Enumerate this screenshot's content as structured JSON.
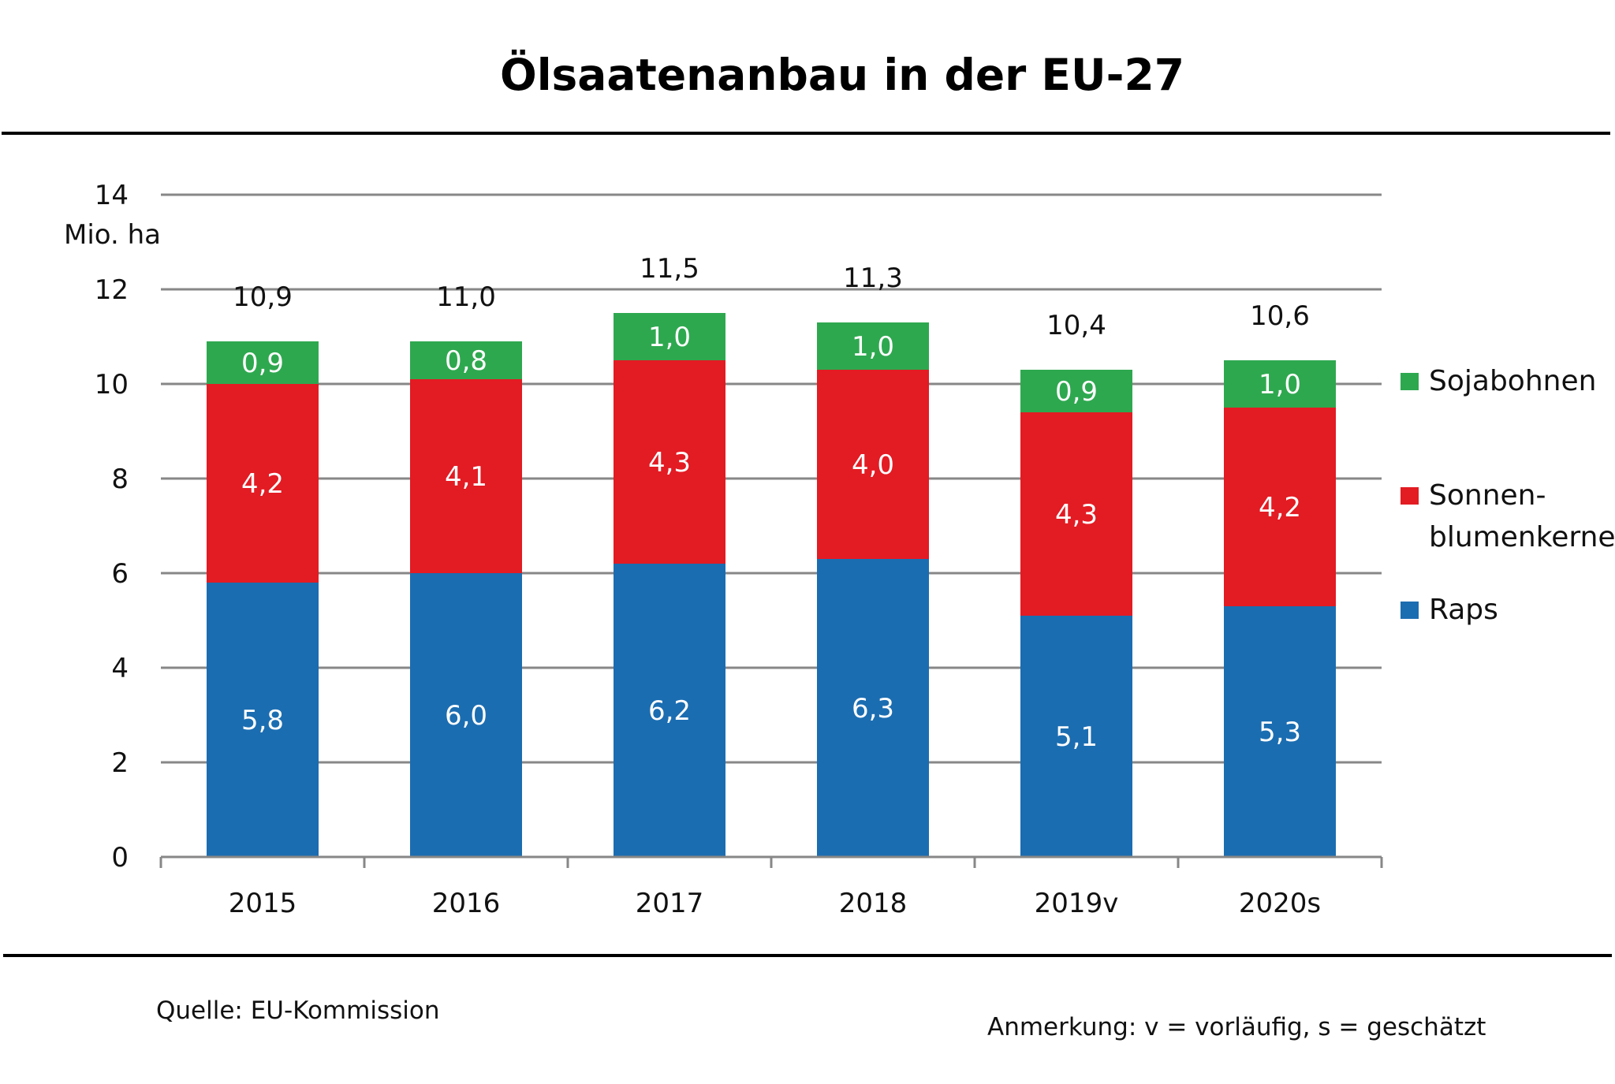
{
  "chart_data": {
    "type": "bar",
    "stacked": true,
    "title": "Ölsaatenanbau in der EU-27",
    "ylabel": "Mio. ha",
    "xlabel": "",
    "ylim": [
      0,
      14
    ],
    "yticks": [
      0,
      2,
      4,
      6,
      8,
      10,
      12,
      14
    ],
    "ytick_labels": [
      "0",
      "2",
      "4",
      "6",
      "8",
      "10",
      "12",
      "14"
    ],
    "grid": true,
    "legend_position": "right",
    "categories": [
      "2015",
      "2016",
      "2017",
      "2018",
      "2019v",
      "2020s"
    ],
    "series": [
      {
        "name": "Raps",
        "color": "#1b6db1",
        "values": [
          5.8,
          6.0,
          6.2,
          6.3,
          5.1,
          5.3
        ],
        "labels": [
          "5,8",
          "6,0",
          "6,2",
          "6,3",
          "5,1",
          "5,3"
        ]
      },
      {
        "name": "Sonnen-blumenkerne",
        "color": "#e31b23",
        "values": [
          4.2,
          4.1,
          4.3,
          4.0,
          4.3,
          4.2
        ],
        "labels": [
          "4,2",
          "4,1",
          "4,3",
          "4,0",
          "4,3",
          "4,2"
        ]
      },
      {
        "name": "Sojabohnen",
        "color": "#2ea84f",
        "values": [
          0.9,
          0.8,
          1.0,
          1.0,
          0.9,
          1.0
        ],
        "labels": [
          "0,9",
          "0,8",
          "1,0",
          "1,0",
          "0,9",
          "1,0"
        ]
      }
    ],
    "totals": [
      10.9,
      11.0,
      11.5,
      11.3,
      10.4,
      10.6
    ],
    "total_labels": [
      "10,9",
      "11,0",
      "11,5",
      "11,3",
      "10,4",
      "10,6"
    ],
    "legend": [
      {
        "name": "Sojabohnen",
        "lines": [
          "Sojabohnen"
        ],
        "color": "#2ea84f"
      },
      {
        "name": "Sonnenblumenkerne",
        "lines": [
          "Sonnen-",
          "blumenkerne"
        ],
        "color": "#e31b23"
      },
      {
        "name": "Raps",
        "lines": [
          "Raps"
        ],
        "color": "#1b6db1"
      }
    ],
    "source": "Quelle: EU-Kommission",
    "note": "Anmerkung: v = vorläufig, s = geschätzt"
  }
}
